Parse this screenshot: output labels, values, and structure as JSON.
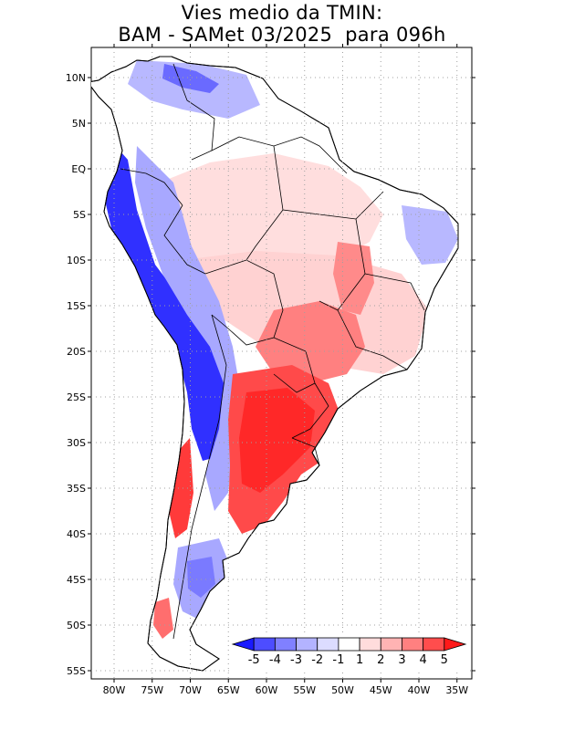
{
  "title": {
    "line1": "Vies medio da TMIN:",
    "line2": "BAM - SAMet 03/2025  para 096h"
  },
  "map": {
    "region": "South America",
    "variable": "TMIN bias",
    "lat_labels": [
      "10N",
      "5N",
      "EQ",
      "5S",
      "10S",
      "15S",
      "20S",
      "25S",
      "30S",
      "35S",
      "40S",
      "45S",
      "50S",
      "55S"
    ],
    "lat_values": [
      10,
      5,
      0,
      -5,
      -10,
      -15,
      -20,
      -25,
      -30,
      -35,
      -40,
      -45,
      -50,
      -55
    ],
    "lon_labels": [
      "80W",
      "75W",
      "70W",
      "65W",
      "60W",
      "55W",
      "50W",
      "45W",
      "40W",
      "35W"
    ],
    "lon_values": [
      -80,
      -75,
      -70,
      -65,
      -60,
      -55,
      -50,
      -45,
      -40,
      -35
    ]
  },
  "colorbar": {
    "labels": [
      "-5",
      "-4",
      "-3",
      "-2",
      "-1",
      "1",
      "2",
      "3",
      "4",
      "5"
    ],
    "colors": [
      "#1a1aff",
      "#4d4dff",
      "#8080ff",
      "#b3b3ff",
      "#dcdcff",
      "#ffffff",
      "#ffdcdc",
      "#ffb3b3",
      "#ff8080",
      "#ff4d4d",
      "#ff1a1a"
    ]
  },
  "palette": {
    "strong_blue": "#0000ff",
    "mid_blue": "#6a6aff",
    "light_blue": "#b8b8ff",
    "pale_blue": "#dedeff",
    "pale_red": "#ffdede",
    "light_red": "#ffb0b0",
    "mid_red": "#ff6e6e",
    "strong_red": "#ff3030"
  }
}
